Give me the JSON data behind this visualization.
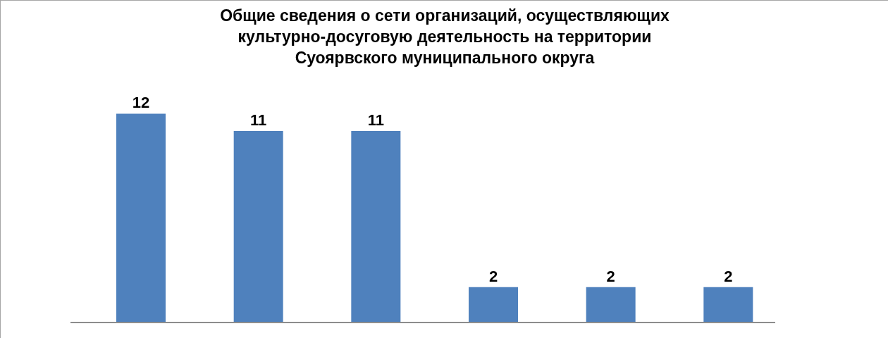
{
  "chart_data": {
    "type": "bar",
    "title": "Общие сведения о сети организаций, осуществляющих\nкультурно-досуговую деятельность на территории\nСуоярвского муниципального округа",
    "categories": [
      null,
      null,
      null,
      null,
      null,
      null
    ],
    "values": [
      12,
      11,
      11,
      2,
      2,
      2
    ],
    "color": "#4f81bd",
    "data_labels": true,
    "tick_labels": false
  }
}
